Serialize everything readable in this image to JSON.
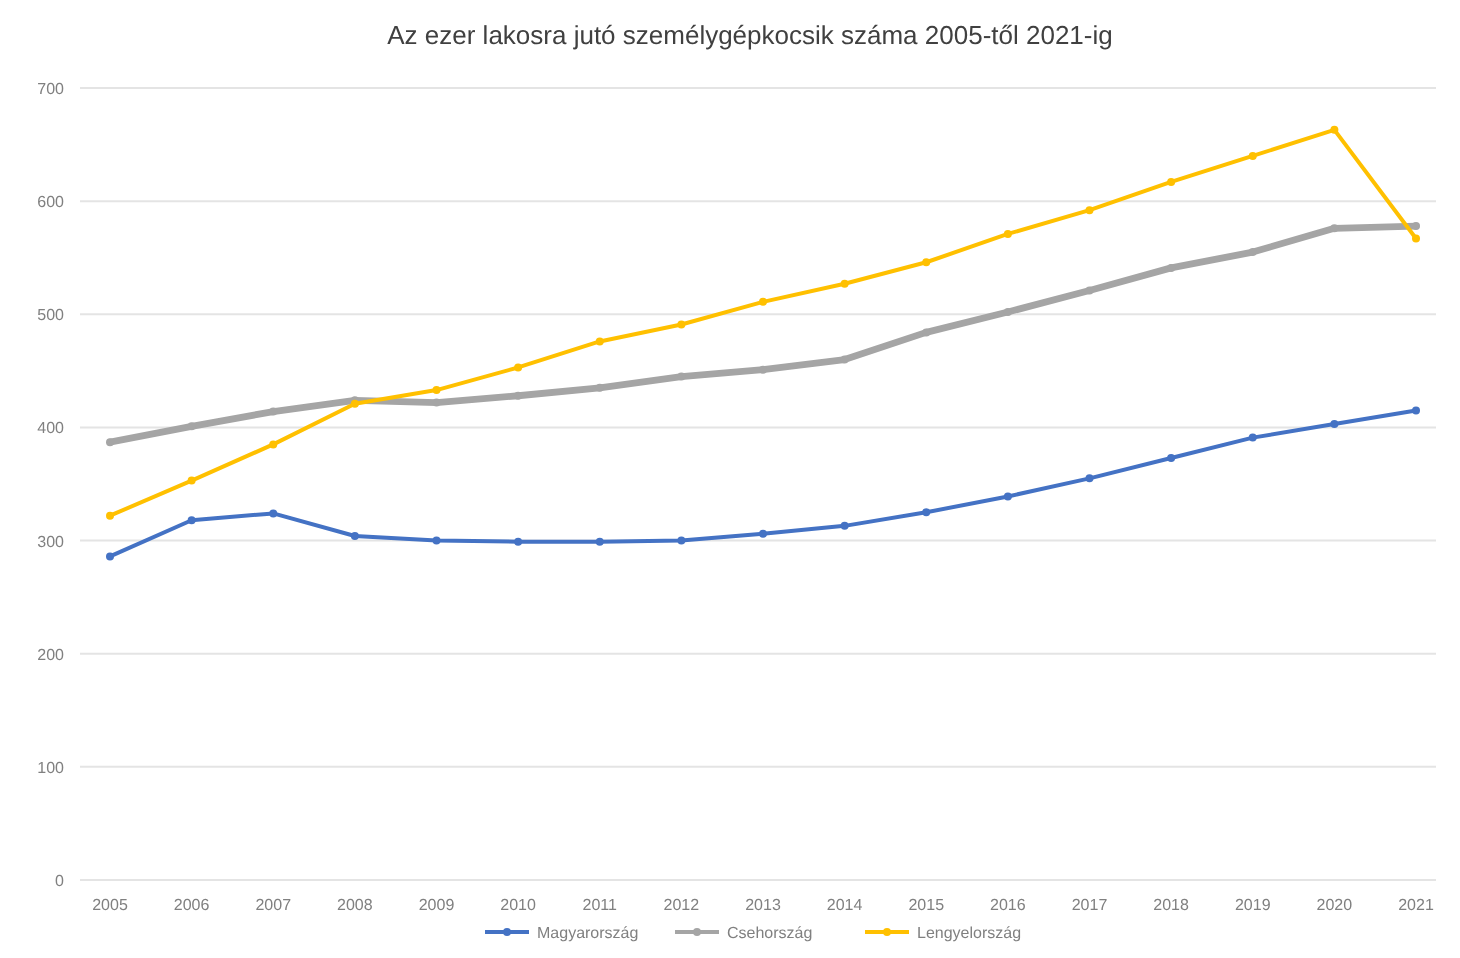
{
  "chart_data": {
    "type": "line",
    "title": "Az ezer lakosra jutó személygépkocsik száma 2005-től 2021-ig",
    "categories": [
      "2005",
      "2006",
      "2007",
      "2008",
      "2009",
      "2010",
      "2011",
      "2012",
      "2013",
      "2014",
      "2015",
      "2016",
      "2017",
      "2018",
      "2019",
      "2020",
      "2021"
    ],
    "series": [
      {
        "name": "Magyarország",
        "color": "#4472c4",
        "values": [
          286,
          318,
          324,
          304,
          300,
          299,
          299,
          300,
          306,
          313,
          325,
          339,
          355,
          373,
          391,
          403,
          415
        ]
      },
      {
        "name": "Csehország",
        "color": "#a5a5a5",
        "values": [
          387,
          401,
          414,
          424,
          422,
          428,
          435,
          445,
          451,
          460,
          484,
          502,
          521,
          541,
          555,
          576,
          578
        ]
      },
      {
        "name": "Lengyelország",
        "color": "#ffc000",
        "values": [
          322,
          353,
          385,
          421,
          433,
          453,
          476,
          491,
          511,
          527,
          546,
          571,
          592,
          617,
          640,
          663,
          567
        ]
      }
    ],
    "ylim": [
      0,
      700
    ],
    "yticks": [
      0,
      100,
      200,
      300,
      400,
      500,
      600,
      700
    ],
    "grid": "y",
    "legend": "bottom",
    "marker": "circle",
    "line_style": "solid"
  }
}
